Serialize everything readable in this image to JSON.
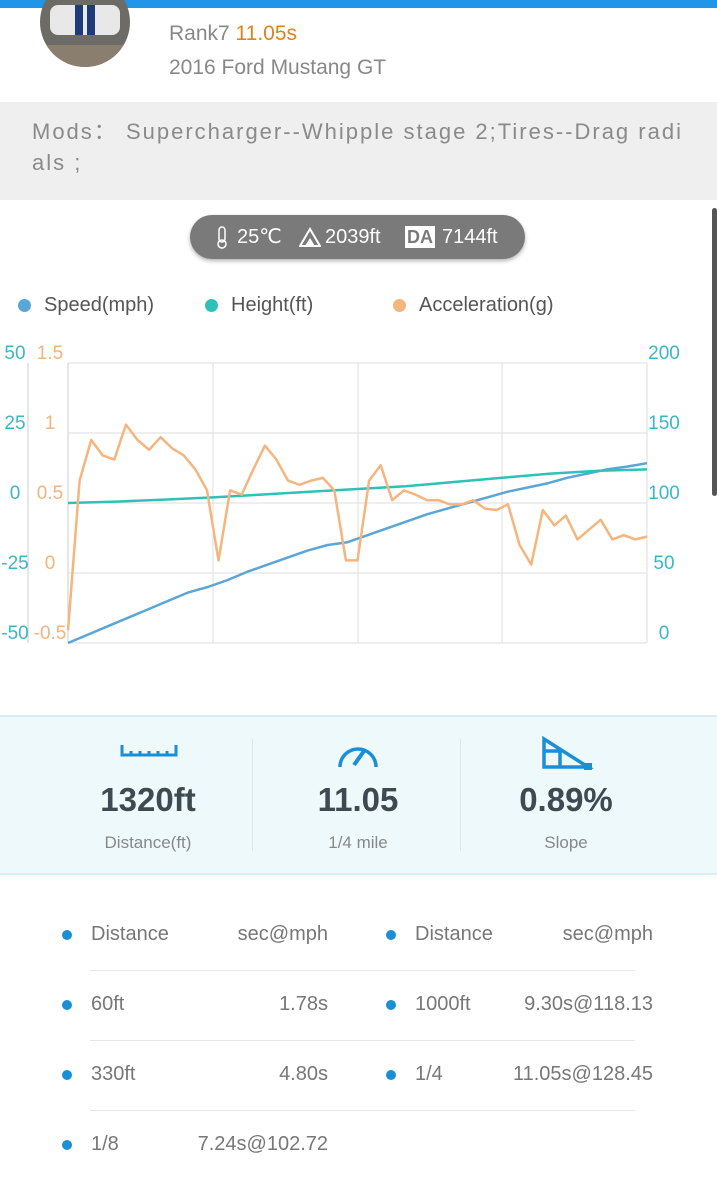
{
  "header": {
    "rank": "Rank7",
    "time": "11.05s",
    "car": "2016 Ford Mustang GT"
  },
  "mods": {
    "label": "Mods：",
    "text": "Supercharger--Whipple stage 2;Tires--Drag radials ;"
  },
  "conditions": {
    "temperature": "25℃",
    "altitude": "2039ft",
    "da_label": "DA",
    "density_altitude": "7144ft"
  },
  "chart_data": {
    "type": "line",
    "series": [
      {
        "name": "Speed(mph)",
        "color": "#5aa6d6",
        "axis": "y2",
        "values": [
          0,
          6,
          12,
          18,
          24,
          30,
          36,
          40,
          45,
          51,
          56,
          61,
          66,
          70,
          72,
          77,
          82,
          87,
          92,
          96,
          100,
          104,
          108,
          111,
          114,
          118,
          121,
          124,
          126,
          128.45
        ]
      },
      {
        "name": "Height(ft)",
        "color": "#2ec1b8",
        "values": [
          0,
          0.5,
          1.2,
          2,
          3,
          4,
          5,
          6,
          7.5,
          9,
          10.5,
          11.5,
          12
        ]
      },
      {
        "name": "Acceleration(g)",
        "color": "#f4b57e",
        "axis": "y3",
        "values": [
          -0.41,
          0.66,
          0.95,
          0.84,
          0.81,
          1.06,
          0.95,
          0.88,
          0.97,
          0.89,
          0.84,
          0.74,
          0.59,
          0.09,
          0.59,
          0.56,
          0.74,
          0.91,
          0.81,
          0.66,
          0.63,
          0.66,
          0.68,
          0.59,
          0.09,
          0.09,
          0.66,
          0.77,
          0.52,
          0.59,
          0.56,
          0.52,
          0.52,
          0.49,
          0.49,
          0.52,
          0.46,
          0.45,
          0.49,
          0.2,
          0.06,
          0.45,
          0.34,
          0.41,
          0.24,
          0.31,
          0.38,
          0.24,
          0.27,
          0.24,
          0.26
        ]
      }
    ],
    "ylim": [
      -50,
      50
    ],
    "yticks": [
      50,
      25,
      0,
      -25,
      -50
    ],
    "y2lim": [
      0,
      200
    ],
    "y2ticks": [
      200,
      150,
      100,
      50,
      0
    ],
    "y3lim": [
      -0.5,
      1.5
    ],
    "y3ticks": [
      1.5,
      1,
      0.5,
      0,
      -0.5
    ],
    "grid": true
  },
  "stats": [
    {
      "value": "1320ft",
      "label": "Distance(ft)"
    },
    {
      "value": "11.05",
      "label": "1/4 mile"
    },
    {
      "value": "0.89%",
      "label": "Slope"
    }
  ],
  "splits": {
    "left": [
      [
        "Distance",
        "sec@mph"
      ],
      [
        "60ft",
        "1.78s"
      ],
      [
        "330ft",
        "4.80s"
      ],
      [
        "1/8",
        "7.24s@102.72"
      ]
    ],
    "right": [
      [
        "Distance",
        "sec@mph"
      ],
      [
        "1000ft",
        "9.30s@118.13"
      ],
      [
        "1/4",
        "11.05s@128.45"
      ]
    ]
  }
}
